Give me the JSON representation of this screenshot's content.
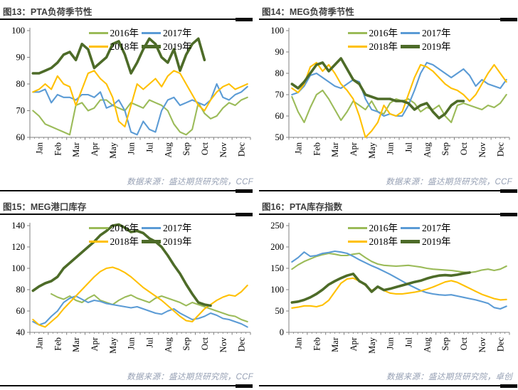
{
  "panels": [
    {
      "title": "图13：PTA负荷季节性",
      "source": "数据来源：盛达期货研究院，CCF"
    },
    {
      "title": "图14：MEG负荷季节性",
      "source": "数据来源：盛达期货研究院，CCF"
    },
    {
      "title": "图15：MEG港口库存",
      "source": "数据来源：盛达期货研究院，CCF"
    },
    {
      "title": "图16：PTA库存指数",
      "source": "数据来源：盛达期货研究院，卓创"
    }
  ],
  "colors": {
    "y2016": "#9BBB59",
    "y2017": "#5B9BD5",
    "y2018": "#FFC000",
    "y2019": "#4D6B28"
  },
  "chart_data": [
    {
      "type": "line",
      "title": "PTA负荷季节性",
      "categories": [
        "Jan",
        "Feb",
        "Mar",
        "Apr",
        "May",
        "Jun",
        "Jul",
        "Aug",
        "Sep",
        "Oct",
        "Nov",
        "Dec"
      ],
      "points_per_month": 3,
      "ylim": [
        60,
        100
      ],
      "yticks": [
        60,
        70,
        80,
        90,
        100
      ],
      "grid": false,
      "legend_position": "top-center",
      "series": [
        {
          "name": "2016年",
          "color": "y2016",
          "values": [
            70,
            68,
            65,
            64,
            63,
            62,
            61,
            72,
            73,
            70,
            71,
            74,
            74,
            72,
            71,
            70,
            73,
            72,
            71,
            74,
            73,
            72,
            70,
            65,
            62,
            61,
            63,
            73,
            69,
            67,
            68,
            71,
            73,
            72,
            74,
            75
          ]
        },
        {
          "name": "2017年",
          "color": "y2017",
          "values": [
            77,
            77,
            78,
            73,
            76,
            75,
            75,
            74,
            76,
            76,
            75,
            77,
            71,
            72,
            74,
            70,
            62,
            61,
            66,
            63,
            62,
            70,
            74,
            75,
            72,
            73,
            74,
            73,
            72,
            74,
            80,
            75,
            74,
            76,
            77,
            79
          ]
        },
        {
          "name": "2018年",
          "color": "y2018",
          "values": [
            77,
            78,
            80,
            78,
            83,
            80,
            79,
            72,
            78,
            84,
            85,
            82,
            80,
            75,
            66,
            64,
            72,
            80,
            78,
            80,
            82,
            79,
            83,
            85,
            84,
            80,
            76,
            72,
            70,
            74,
            77,
            79,
            80,
            78,
            79,
            80
          ]
        },
        {
          "name": "2019年",
          "color": "y2019",
          "values": [
            84,
            84,
            85,
            86,
            88,
            91,
            92,
            89,
            95,
            93,
            86,
            88,
            90,
            95,
            96,
            91,
            84,
            88,
            93,
            97,
            95,
            90,
            88,
            93,
            85,
            91,
            95,
            97,
            89,
            null,
            null,
            null,
            null,
            null,
            null,
            null
          ]
        }
      ]
    },
    {
      "type": "line",
      "title": "MEG负荷季节性",
      "categories": [
        "Jan",
        "Feb",
        "Mar",
        "Apr",
        "May",
        "Jun",
        "Jul",
        "Aug",
        "Sep",
        "Oct",
        "Nov",
        "Dec"
      ],
      "points_per_month": 3,
      "ylim": [
        50,
        100
      ],
      "yticks": [
        50,
        60,
        70,
        80,
        90,
        100
      ],
      "grid": false,
      "legend_position": "top-center",
      "series": [
        {
          "name": "2016年",
          "color": "y2016",
          "values": [
            69,
            62,
            57,
            64,
            70,
            72,
            68,
            63,
            58,
            62,
            67,
            65,
            63,
            67,
            62,
            61,
            66,
            68,
            67,
            68,
            66,
            62,
            64,
            63,
            65,
            60,
            57,
            65,
            66,
            65,
            64,
            63,
            65,
            64,
            66,
            70
          ]
        },
        {
          "name": "2017年",
          "color": "y2017",
          "values": [
            70,
            71,
            74,
            79,
            80,
            78,
            76,
            74,
            73,
            75,
            77,
            76,
            68,
            63,
            62,
            60,
            61,
            60,
            60,
            65,
            72,
            80,
            85,
            84,
            82,
            80,
            78,
            80,
            82,
            79,
            74,
            77,
            75,
            74,
            73,
            77
          ]
        },
        {
          "name": "2018年",
          "color": "y2018",
          "values": [
            73,
            71,
            75,
            83,
            85,
            81,
            84,
            80,
            75,
            72,
            68,
            60,
            50,
            53,
            57,
            65,
            61,
            60,
            62,
            70,
            78,
            84,
            83,
            81,
            78,
            75,
            73,
            72,
            70,
            67,
            70,
            75,
            80,
            84,
            80,
            76
          ]
        },
        {
          "name": "2019年",
          "color": "y2019",
          "values": [
            75,
            73,
            76,
            80,
            84,
            85,
            81,
            84,
            87,
            82,
            77,
            75,
            70,
            69,
            68,
            68,
            68,
            67,
            67,
            66,
            63,
            65,
            66,
            62,
            59,
            61,
            65,
            67,
            67,
            null,
            null,
            null,
            null,
            null,
            null,
            null
          ]
        }
      ]
    },
    {
      "type": "line",
      "title": "MEG港口库存",
      "categories": [
        "Jan",
        "Feb",
        "Mar",
        "Apr",
        "May",
        "Jun",
        "Jul",
        "Aug",
        "Sep",
        "Oct",
        "Nov",
        "Dec"
      ],
      "points_per_month": 3,
      "ylim": [
        40,
        140
      ],
      "yticks": [
        40,
        60,
        80,
        100,
        120,
        140
      ],
      "grid": false,
      "legend_position": "top-center",
      "series": [
        {
          "name": "2016年",
          "color": "y2016",
          "values": [
            null,
            null,
            null,
            76,
            73,
            71,
            74,
            70,
            68,
            72,
            75,
            70,
            68,
            66,
            70,
            73,
            75,
            72,
            70,
            68,
            72,
            74,
            72,
            70,
            68,
            65,
            68,
            66,
            64,
            62,
            60,
            58,
            56,
            55,
            52,
            50
          ]
        },
        {
          "name": "2017年",
          "color": "y2017",
          "values": [
            50,
            47,
            49,
            55,
            60,
            68,
            72,
            74,
            71,
            68,
            70,
            69,
            67,
            66,
            65,
            64,
            63,
            64,
            62,
            60,
            58,
            57,
            60,
            62,
            58,
            55,
            52,
            53,
            55,
            58,
            56,
            53,
            52,
            50,
            48,
            45
          ]
        },
        {
          "name": "2018年",
          "color": "y2018",
          "values": [
            52,
            47,
            45,
            50,
            55,
            62,
            68,
            74,
            80,
            86,
            92,
            97,
            100,
            101,
            99,
            96,
            92,
            87,
            82,
            78,
            74,
            70,
            65,
            60,
            55,
            51,
            50,
            56,
            62,
            66,
            70,
            73,
            75,
            74,
            78,
            84
          ]
        },
        {
          "name": "2019年",
          "color": "y2019",
          "values": [
            79,
            83,
            86,
            88,
            92,
            100,
            105,
            110,
            115,
            120,
            125,
            131,
            135,
            140,
            141,
            138,
            134,
            135,
            133,
            128,
            125,
            120,
            112,
            103,
            95,
            85,
            76,
            68,
            66,
            65,
            null,
            null,
            null,
            null,
            null,
            null
          ]
        }
      ]
    },
    {
      "type": "line",
      "title": "PTA库存指数",
      "categories": [
        "Jan",
        "Feb",
        "Mar",
        "Apr",
        "May",
        "Jun",
        "Jul",
        "Aug",
        "Sep",
        "Oct",
        "Nov",
        "Dec"
      ],
      "points_per_month": 3,
      "ylim": [
        0,
        250
      ],
      "yticks": [
        0,
        50,
        100,
        150,
        200,
        250
      ],
      "grid": false,
      "legend_position": "top-center",
      "series": [
        {
          "name": "2016年",
          "color": "y2016",
          "values": [
            148,
            158,
            166,
            172,
            178,
            182,
            185,
            183,
            180,
            180,
            183,
            185,
            175,
            166,
            160,
            157,
            156,
            155,
            156,
            157,
            155,
            153,
            150,
            148,
            147,
            146,
            145,
            143,
            141,
            140,
            142,
            146,
            148,
            145,
            148,
            155
          ]
        },
        {
          "name": "2017年",
          "color": "y2017",
          "values": [
            165,
            175,
            188,
            178,
            180,
            185,
            187,
            190,
            188,
            185,
            178,
            170,
            163,
            156,
            150,
            143,
            136,
            128,
            120,
            112,
            105,
            98,
            93,
            90,
            88,
            87,
            88,
            85,
            82,
            79,
            76,
            72,
            68,
            58,
            55,
            61
          ]
        },
        {
          "name": "2018年",
          "color": "y2018",
          "values": [
            57,
            59,
            62,
            62,
            60,
            64,
            75,
            95,
            115,
            125,
            127,
            120,
            110,
            98,
            106,
            98,
            92,
            90,
            90,
            92,
            94,
            97,
            101,
            106,
            112,
            118,
            121,
            117,
            110,
            103,
            96,
            89,
            84,
            79,
            76,
            77
          ]
        },
        {
          "name": "2019年",
          "color": "y2019",
          "values": [
            70,
            72,
            76,
            82,
            90,
            100,
            112,
            120,
            127,
            133,
            137,
            120,
            112,
            95,
            107,
            99,
            102,
            106,
            110,
            114,
            118,
            121,
            126,
            130,
            133,
            134,
            133,
            135,
            138,
            140,
            null,
            null,
            null,
            null,
            null,
            null
          ]
        }
      ]
    }
  ]
}
